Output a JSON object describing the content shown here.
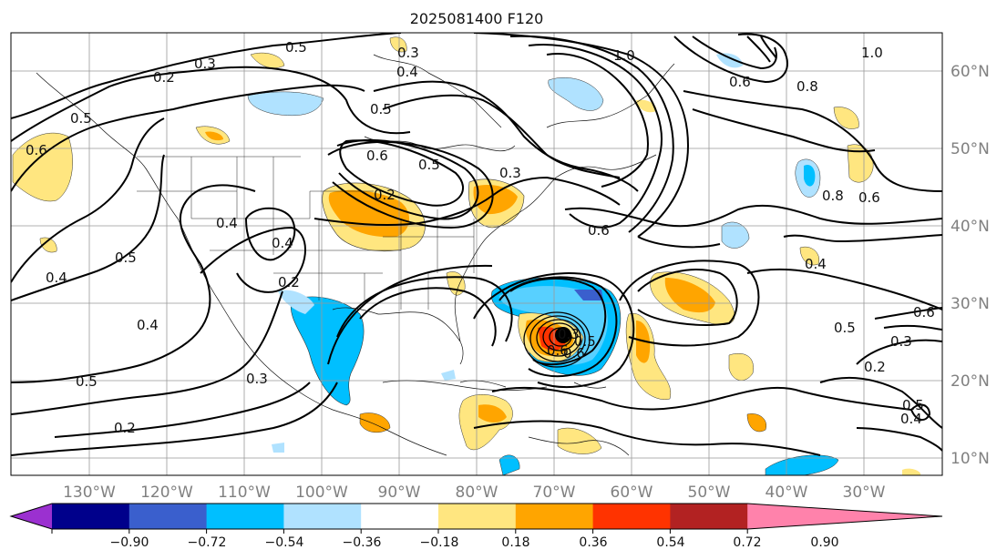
{
  "title": "2025081400 F120",
  "lon_labels": [
    "130°W",
    "120°W",
    "110°W",
    "100°W",
    "90°W",
    "80°W",
    "70°W",
    "60°W",
    "50°W",
    "40°W",
    "30°W"
  ],
  "lat_labels": [
    "60°N",
    "50°N",
    "40°N",
    "30°N",
    "20°N",
    "10°N"
  ],
  "colorbar": {
    "ticks": [
      "−0.90",
      "−0.72",
      "−0.54",
      "−0.36",
      "−0.18",
      "0.18",
      "0.36",
      "0.54",
      "0.72",
      "0.90"
    ],
    "colors": [
      "#9b30d0",
      "#00008b",
      "#3a5fcd",
      "#00bfff",
      "#b0e2ff",
      "#ffffff",
      "#ffe680",
      "#ffa500",
      "#ff3300",
      "#b22222",
      "#ff82ab"
    ]
  },
  "contour_labels": [
    "0.5",
    "0.3",
    "0.4",
    "1.0",
    "1.0",
    "0.2",
    "0.3",
    "0.6",
    "0.5",
    "0.6",
    "0.8",
    "0.5",
    "0.6",
    "0.6",
    "0.5",
    "0.3",
    "0.4",
    "0.2",
    "0.4",
    "0.4",
    "0.2",
    "0.3",
    "0.4",
    "0.5",
    "0.6",
    "0.8",
    "0.6",
    "0.6",
    "0.4",
    "0.5",
    "0.6",
    "0.3",
    "0.2",
    "0.5",
    "0.4",
    "0.5",
    "0.2",
    "0.3",
    "0.5"
  ]
}
